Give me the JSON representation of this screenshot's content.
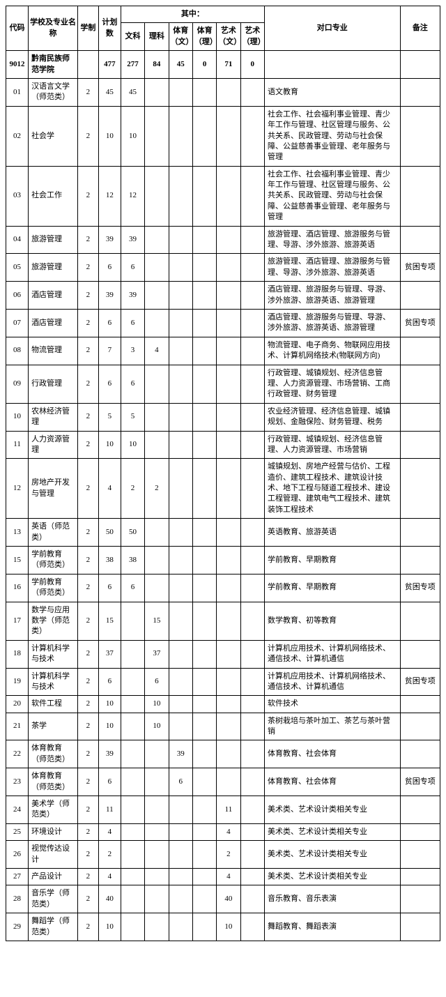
{
  "header": {
    "code": "代码",
    "name": "学校及专业名称",
    "years": "学制",
    "plan": "计划数",
    "breakdown": "其中：",
    "cols": [
      "文科",
      "理科",
      "体育（文）",
      "体育（理）",
      "艺术（文）",
      "艺术（理）"
    ],
    "major": "对口专业",
    "note": "备注"
  },
  "schoolRow": {
    "code": "9012",
    "name": "黔南民族师范学院",
    "plan": "477",
    "sub": [
      "277",
      "84",
      "45",
      "0",
      "71",
      "0"
    ]
  },
  "rows": [
    {
      "code": "01",
      "name": "汉语言文学（师范类）",
      "years": "2",
      "plan": "45",
      "sub": [
        "45",
        "",
        "",
        "",
        "",
        ""
      ],
      "major": "语文教育",
      "note": ""
    },
    {
      "code": "02",
      "name": "社会学",
      "years": "2",
      "plan": "10",
      "sub": [
        "10",
        "",
        "",
        "",
        "",
        ""
      ],
      "major": "社会工作、社会福利事业管理、青少年工作与管理、社区管理与服务、公共关系、民政管理、劳动与社会保障、公益慈善事业管理、老年服务与管理",
      "note": ""
    },
    {
      "code": "03",
      "name": "社会工作",
      "years": "2",
      "plan": "12",
      "sub": [
        "12",
        "",
        "",
        "",
        "",
        ""
      ],
      "major": "社会工作、社会福利事业管理、青少年工作与管理、社区管理与服务、公共关系、民政管理、劳动与社会保障、公益慈善事业管理、老年服务与管理",
      "note": ""
    },
    {
      "code": "04",
      "name": "旅游管理",
      "years": "2",
      "plan": "39",
      "sub": [
        "39",
        "",
        "",
        "",
        "",
        ""
      ],
      "major": "旅游管理、酒店管理、旅游服务与管理、导游、涉外旅游、旅游英语",
      "note": ""
    },
    {
      "code": "05",
      "name": "旅游管理",
      "years": "2",
      "plan": "6",
      "sub": [
        "6",
        "",
        "",
        "",
        "",
        ""
      ],
      "major": "旅游管理、酒店管理、旅游服务与管理、导游、涉外旅游、旅游英语",
      "note": "贫困专项"
    },
    {
      "code": "06",
      "name": "酒店管理",
      "years": "2",
      "plan": "39",
      "sub": [
        "39",
        "",
        "",
        "",
        "",
        ""
      ],
      "major": "酒店管理、旅游服务与管理、导游、涉外旅游、旅游英语、旅游管理",
      "note": ""
    },
    {
      "code": "07",
      "name": "酒店管理",
      "years": "2",
      "plan": "6",
      "sub": [
        "6",
        "",
        "",
        "",
        "",
        ""
      ],
      "major": "酒店管理、旅游服务与管理、导游、涉外旅游、旅游英语、旅游管理",
      "note": "贫困专项"
    },
    {
      "code": "08",
      "name": "物流管理",
      "years": "2",
      "plan": "7",
      "sub": [
        "3",
        "4",
        "",
        "",
        "",
        ""
      ],
      "major": "物流管理、电子商务、物联网应用技术、计算机网络技术(物联网方向)",
      "note": ""
    },
    {
      "code": "09",
      "name": "行政管理",
      "years": "2",
      "plan": "6",
      "sub": [
        "6",
        "",
        "",
        "",
        "",
        ""
      ],
      "major": "行政管理、城镇规划、经济信息管理、人力资源管理、市场营销、工商行政管理、财务管理",
      "note": ""
    },
    {
      "code": "10",
      "name": "农林经济管理",
      "years": "2",
      "plan": "5",
      "sub": [
        "5",
        "",
        "",
        "",
        "",
        ""
      ],
      "major": "农业经济管理、经济信息管理、城镇规划、金融保险、财务管理、税务",
      "note": ""
    },
    {
      "code": "11",
      "name": "人力资源管理",
      "years": "2",
      "plan": "10",
      "sub": [
        "10",
        "",
        "",
        "",
        "",
        ""
      ],
      "major": "行政管理、城镇规划、经济信息管理、人力资源管理、市场营销",
      "note": ""
    },
    {
      "code": "12",
      "name": "房地产开发与管理",
      "years": "2",
      "plan": "4",
      "sub": [
        "2",
        "2",
        "",
        "",
        "",
        ""
      ],
      "major": "城镇规划、房地产经营与估价、工程造价、建筑工程技术、建筑设计技术、地下工程与隧道工程技术、建设工程管理、建筑电气工程技术、建筑装饰工程技术",
      "note": ""
    },
    {
      "code": "13",
      "name": "英语（师范类）",
      "years": "2",
      "plan": "50",
      "sub": [
        "50",
        "",
        "",
        "",
        "",
        ""
      ],
      "major": "英语教育、旅游英语",
      "note": ""
    },
    {
      "code": "15",
      "name": "学前教育（师范类）",
      "years": "2",
      "plan": "38",
      "sub": [
        "38",
        "",
        "",
        "",
        "",
        ""
      ],
      "major": "学前教育、早期教育",
      "note": ""
    },
    {
      "code": "16",
      "name": "学前教育（师范类）",
      "years": "2",
      "plan": "6",
      "sub": [
        "6",
        "",
        "",
        "",
        "",
        ""
      ],
      "major": "学前教育、早期教育",
      "note": "贫困专项"
    },
    {
      "code": "17",
      "name": "数学与应用数学（师范类）",
      "years": "2",
      "plan": "15",
      "sub": [
        "",
        "15",
        "",
        "",
        "",
        ""
      ],
      "major": "数学教育、初等教育",
      "note": ""
    },
    {
      "code": "18",
      "name": "计算机科学与技术",
      "years": "2",
      "plan": "37",
      "sub": [
        "",
        "37",
        "",
        "",
        "",
        ""
      ],
      "major": "计算机应用技术、计算机网络技术、通信技术、计算机通信",
      "note": ""
    },
    {
      "code": "19",
      "name": "计算机科学与技术",
      "years": "2",
      "plan": "6",
      "sub": [
        "",
        "6",
        "",
        "",
        "",
        ""
      ],
      "major": "计算机应用技术、计算机网络技术、通信技术、计算机通信",
      "note": "贫困专项"
    },
    {
      "code": "20",
      "name": "软件工程",
      "years": "2",
      "plan": "10",
      "sub": [
        "",
        "10",
        "",
        "",
        "",
        ""
      ],
      "major": "软件技术",
      "note": ""
    },
    {
      "code": "21",
      "name": "茶学",
      "years": "2",
      "plan": "10",
      "sub": [
        "",
        "10",
        "",
        "",
        "",
        ""
      ],
      "major": "茶树栽培与茶叶加工、茶艺与茶叶营销",
      "note": ""
    },
    {
      "code": "22",
      "name": "体育教育（师范类）",
      "years": "2",
      "plan": "39",
      "sub": [
        "",
        "",
        "39",
        "",
        "",
        ""
      ],
      "major": "体育教育、社会体育",
      "note": ""
    },
    {
      "code": "23",
      "name": "体育教育（师范类）",
      "years": "2",
      "plan": "6",
      "sub": [
        "",
        "",
        "6",
        "",
        "",
        ""
      ],
      "major": "体育教育、社会体育",
      "note": "贫困专项"
    },
    {
      "code": "24",
      "name": "美术学（师范类）",
      "years": "2",
      "plan": "11",
      "sub": [
        "",
        "",
        "",
        "",
        "11",
        ""
      ],
      "major": "美术类、艺术设计类相关专业",
      "note": ""
    },
    {
      "code": "25",
      "name": "环境设计",
      "years": "2",
      "plan": "4",
      "sub": [
        "",
        "",
        "",
        "",
        "4",
        ""
      ],
      "major": "美术类、艺术设计类相关专业",
      "note": ""
    },
    {
      "code": "26",
      "name": "视觉传达设计",
      "years": "2",
      "plan": "2",
      "sub": [
        "",
        "",
        "",
        "",
        "2",
        ""
      ],
      "major": "美术类、艺术设计类相关专业",
      "note": ""
    },
    {
      "code": "27",
      "name": "产品设计",
      "years": "2",
      "plan": "4",
      "sub": [
        "",
        "",
        "",
        "",
        "4",
        ""
      ],
      "major": "美术类、艺术设计类相关专业",
      "note": ""
    },
    {
      "code": "28",
      "name": "音乐学（师范类）",
      "years": "2",
      "plan": "40",
      "sub": [
        "",
        "",
        "",
        "",
        "40",
        ""
      ],
      "major": "音乐教育、音乐表演",
      "note": ""
    },
    {
      "code": "29",
      "name": "舞蹈学（师范类）",
      "years": "2",
      "plan": "10",
      "sub": [
        "",
        "",
        "",
        "",
        "10",
        ""
      ],
      "major": "舞蹈教育、舞蹈表演",
      "note": ""
    }
  ]
}
